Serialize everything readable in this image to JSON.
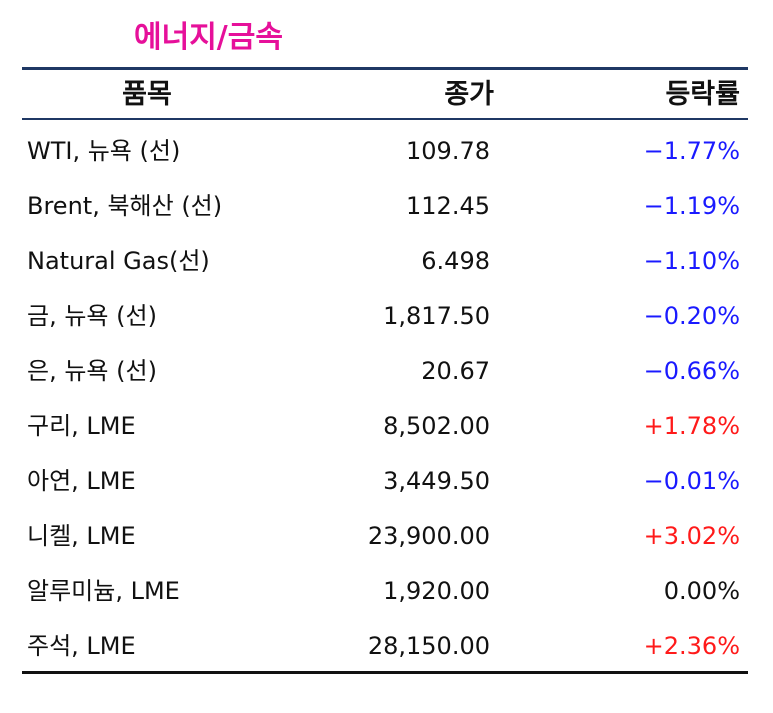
{
  "title": "에너지/금속",
  "headers": {
    "item": "품목",
    "close": "종가",
    "change": "등락률"
  },
  "colors": {
    "title": "#e6109a",
    "negative": "#1a1aff",
    "positive": "#ff1a1a",
    "neutral": "#111111",
    "rule": "#1f3864"
  },
  "rows": [
    {
      "item": "WTI, 뉴욕 (선)",
      "close": "109.78",
      "change": "−1.77%",
      "dir": "neg"
    },
    {
      "item": "Brent, 북해산 (선)",
      "close": "112.45",
      "change": "−1.19%",
      "dir": "neg"
    },
    {
      "item": "Natural Gas(선)",
      "close": "6.498",
      "change": "−1.10%",
      "dir": "neg"
    },
    {
      "item": "금, 뉴욕  (선)",
      "close": "1,817.50",
      "change": "−0.20%",
      "dir": "neg"
    },
    {
      "item": "은, 뉴욕  (선)",
      "close": "20.67",
      "change": "−0.66%",
      "dir": "neg"
    },
    {
      "item": "구리, LME",
      "close": "8,502.00",
      "change": "+1.78%",
      "dir": "pos"
    },
    {
      "item": "아연, LME",
      "close": "3,449.50",
      "change": "−0.01%",
      "dir": "neg"
    },
    {
      "item": "니켈, LME",
      "close": "23,900.00",
      "change": "+3.02%",
      "dir": "pos"
    },
    {
      "item": "알루미늄, LME",
      "close": "1,920.00",
      "change": "0.00%",
      "dir": "zero"
    },
    {
      "item": "주석, LME",
      "close": "28,150.00",
      "change": "+2.36%",
      "dir": "pos"
    }
  ]
}
